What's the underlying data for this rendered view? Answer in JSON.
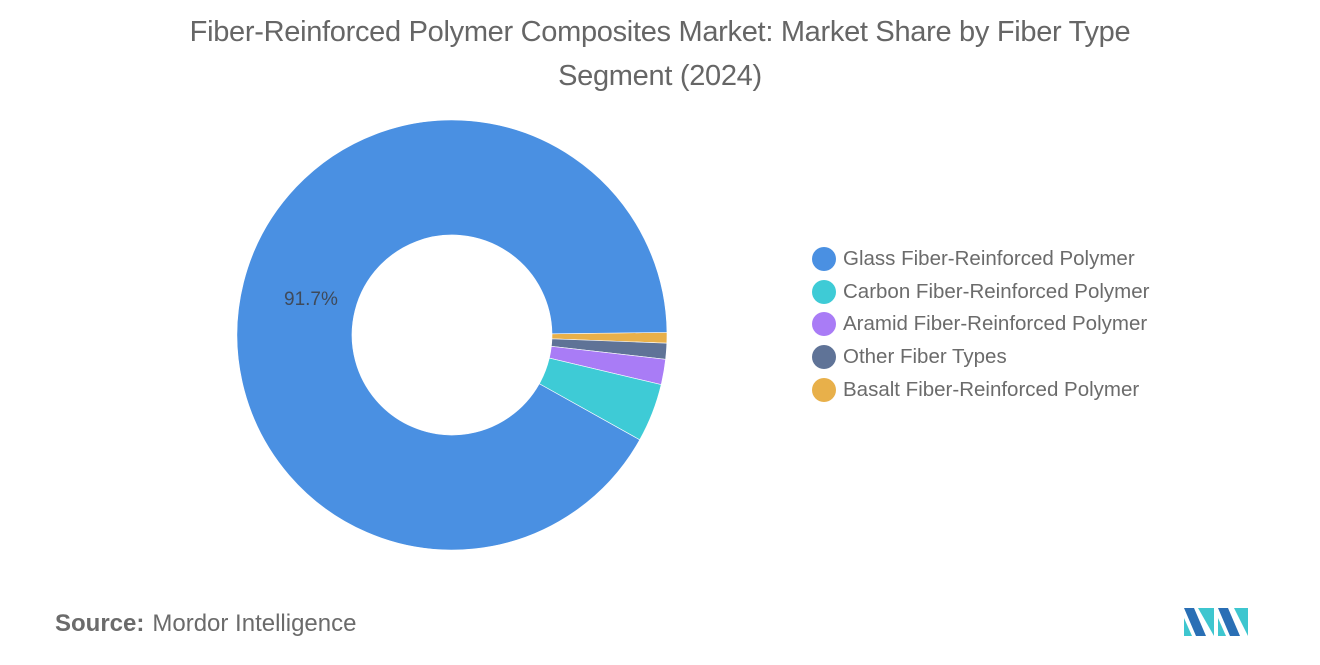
{
  "title": {
    "line1": "Fiber-Reinforced Polymer Composites Market: Market Share by Fiber Type",
    "line2": "Segment (2024)"
  },
  "chart_data": {
    "type": "pie",
    "subtype": "donut",
    "title": "Fiber-Reinforced Polymer Composites Market: Market Share by Fiber Type Segment (2024)",
    "categories": [
      "Glass Fiber-Reinforced Polymer",
      "Carbon Fiber-Reinforced Polymer",
      "Aramid Fiber-Reinforced Polymer",
      "Other Fiber Types",
      "Basalt Fiber-Reinforced Polymer"
    ],
    "values": [
      91.7,
      4.4,
      1.9,
      1.2,
      0.8
    ],
    "colors": [
      "#4a90e2",
      "#3ecbd6",
      "#a97cf6",
      "#5f7397",
      "#e8b04a"
    ],
    "data_labels": [
      {
        "category": "Glass Fiber-Reinforced Polymer",
        "text": "91.7%"
      }
    ],
    "legend_position": "right",
    "unit": "%"
  },
  "legend": {
    "items": [
      {
        "label": "Glass Fiber-Reinforced Polymer",
        "color": "#4a90e2"
      },
      {
        "label": "Carbon Fiber-Reinforced Polymer",
        "color": "#3ecbd6"
      },
      {
        "label": "Aramid Fiber-Reinforced Polymer",
        "color": "#a97cf6"
      },
      {
        "label": "Other Fiber Types",
        "color": "#5f7397"
      },
      {
        "label": "Basalt Fiber-Reinforced Polymer",
        "color": "#e8b04a"
      }
    ]
  },
  "slice_label": "91.7%",
  "source": {
    "label": "Source:",
    "value": "Mordor Intelligence"
  },
  "logo": {
    "icon": "mordor-intelligence-logo",
    "colors": [
      "#2a6fb5",
      "#3ec6cf"
    ]
  }
}
